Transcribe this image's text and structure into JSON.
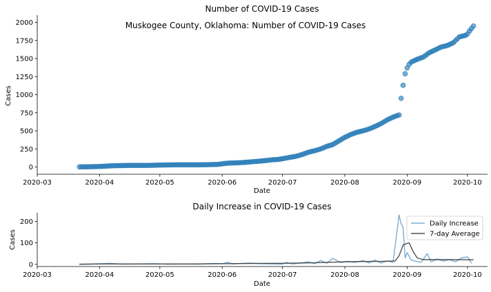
{
  "chart_data": [
    {
      "type": "scatter",
      "title": "Number of COVID-19 Cases",
      "annotation": "Muskogee County, Oklahoma: Number of COVID-19 Cases",
      "xlabel": "Date",
      "ylabel": "Cases",
      "x_ticks": [
        "2020-03",
        "2020-04",
        "2020-05",
        "2020-06",
        "2020-07",
        "2020-08",
        "2020-09",
        "2020-10"
      ],
      "y_ticks": [
        "0",
        "250",
        "500",
        "750",
        "1000",
        "1250",
        "1500",
        "1750",
        "2000"
      ],
      "ylim": [
        -100,
        2100
      ],
      "xlim": [
        "2020-03-01",
        "2020-10-11"
      ],
      "point_color": "#1f77b4",
      "series": [
        {
          "x": [
            "2020-03-22",
            "2020-03-25",
            "2020-03-28",
            "2020-03-31",
            "2020-04-03",
            "2020-04-06",
            "2020-04-09",
            "2020-04-12",
            "2020-04-15",
            "2020-04-18",
            "2020-04-21",
            "2020-04-24",
            "2020-04-27",
            "2020-04-30",
            "2020-05-03",
            "2020-05-06",
            "2020-05-09",
            "2020-05-12",
            "2020-05-15",
            "2020-05-18",
            "2020-05-21",
            "2020-05-24",
            "2020-05-27",
            "2020-05-30",
            "2020-06-02",
            "2020-06-05",
            "2020-06-08",
            "2020-06-11",
            "2020-06-14",
            "2020-06-17",
            "2020-06-20",
            "2020-06-23",
            "2020-06-26",
            "2020-06-29",
            "2020-07-02",
            "2020-07-05",
            "2020-07-08",
            "2020-07-11",
            "2020-07-14",
            "2020-07-17",
            "2020-07-20",
            "2020-07-23",
            "2020-07-26",
            "2020-07-29",
            "2020-08-01",
            "2020-08-04",
            "2020-08-07",
            "2020-08-10",
            "2020-08-13",
            "2020-08-16",
            "2020-08-19",
            "2020-08-22",
            "2020-08-25",
            "2020-08-28",
            "2020-08-29",
            "2020-08-30",
            "2020-08-31",
            "2020-09-01",
            "2020-09-02",
            "2020-09-03",
            "2020-09-06",
            "2020-09-09",
            "2020-09-12",
            "2020-09-15",
            "2020-09-18",
            "2020-09-21",
            "2020-09-24",
            "2020-09-27",
            "2020-09-30",
            "2020-10-01",
            "2020-10-02",
            "2020-10-04"
          ],
          "values": [
            2,
            3,
            4,
            6,
            10,
            15,
            18,
            20,
            22,
            22,
            22,
            22,
            23,
            26,
            28,
            29,
            30,
            30,
            30,
            30,
            31,
            32,
            34,
            36,
            48,
            55,
            58,
            62,
            68,
            75,
            82,
            90,
            100,
            105,
            120,
            135,
            150,
            175,
            205,
            225,
            250,
            285,
            310,
            360,
            410,
            450,
            480,
            500,
            525,
            560,
            600,
            650,
            690,
            720,
            950,
            1130,
            1290,
            1370,
            1420,
            1450,
            1490,
            1520,
            1580,
            1620,
            1660,
            1680,
            1720,
            1800,
            1820,
            1840,
            1880,
            1950
          ]
        }
      ]
    },
    {
      "type": "line",
      "title": "Daily Increase in COVID-19 Cases",
      "xlabel": "Date",
      "ylabel": "Cases",
      "x_ticks": [
        "2020-03",
        "2020-04",
        "2020-05",
        "2020-06",
        "2020-07",
        "2020-08",
        "2020-09",
        "2020-10"
      ],
      "y_ticks": [
        "0",
        "100",
        "200"
      ],
      "ylim": [
        -10,
        240
      ],
      "xlim": [
        "2020-03-01",
        "2020-10-11"
      ],
      "legend_position": "top-right",
      "series": [
        {
          "name": "Daily Increase",
          "color": "#1f77b4",
          "x": [
            "2020-03-22",
            "2020-03-29",
            "2020-04-02",
            "2020-04-06",
            "2020-04-12",
            "2020-04-20",
            "2020-04-28",
            "2020-05-05",
            "2020-05-12",
            "2020-05-20",
            "2020-05-28",
            "2020-06-01",
            "2020-06-04",
            "2020-06-06",
            "2020-06-10",
            "2020-06-15",
            "2020-06-20",
            "2020-06-26",
            "2020-07-01",
            "2020-07-03",
            "2020-07-06",
            "2020-07-10",
            "2020-07-14",
            "2020-07-17",
            "2020-07-20",
            "2020-07-23",
            "2020-07-26",
            "2020-07-30",
            "2020-08-02",
            "2020-08-06",
            "2020-08-10",
            "2020-08-13",
            "2020-08-16",
            "2020-08-19",
            "2020-08-22",
            "2020-08-25",
            "2020-08-28",
            "2020-08-29",
            "2020-08-30",
            "2020-08-31",
            "2020-09-01",
            "2020-09-03",
            "2020-09-05",
            "2020-09-08",
            "2020-09-11",
            "2020-09-13",
            "2020-09-16",
            "2020-09-19",
            "2020-09-22",
            "2020-09-25",
            "2020-09-28",
            "2020-10-01",
            "2020-10-03"
          ],
          "values": [
            0,
            2,
            3,
            5,
            1,
            2,
            3,
            1,
            2,
            1,
            4,
            3,
            10,
            2,
            4,
            6,
            3,
            2,
            1,
            9,
            2,
            6,
            12,
            3,
            18,
            5,
            28,
            8,
            14,
            9,
            18,
            7,
            20,
            6,
            16,
            10,
            230,
            190,
            170,
            30,
            55,
            20,
            15,
            10,
            50,
            12,
            25,
            15,
            22,
            12,
            30,
            35,
            5
          ]
        },
        {
          "name": "7-day Average",
          "color": "#333333",
          "x": [
            "2020-03-22",
            "2020-04-01",
            "2020-04-15",
            "2020-05-01",
            "2020-05-15",
            "2020-06-01",
            "2020-06-15",
            "2020-07-01",
            "2020-07-15",
            "2020-07-25",
            "2020-08-05",
            "2020-08-20",
            "2020-08-26",
            "2020-08-28",
            "2020-08-30",
            "2020-09-01",
            "2020-09-02",
            "2020-09-04",
            "2020-09-06",
            "2020-09-09",
            "2020-09-15",
            "2020-09-22",
            "2020-10-04"
          ],
          "values": [
            1,
            2,
            2,
            2,
            2,
            3,
            4,
            5,
            7,
            10,
            13,
            14,
            16,
            40,
            90,
            98,
            100,
            60,
            30,
            22,
            22,
            22,
            21
          ]
        }
      ]
    }
  ]
}
